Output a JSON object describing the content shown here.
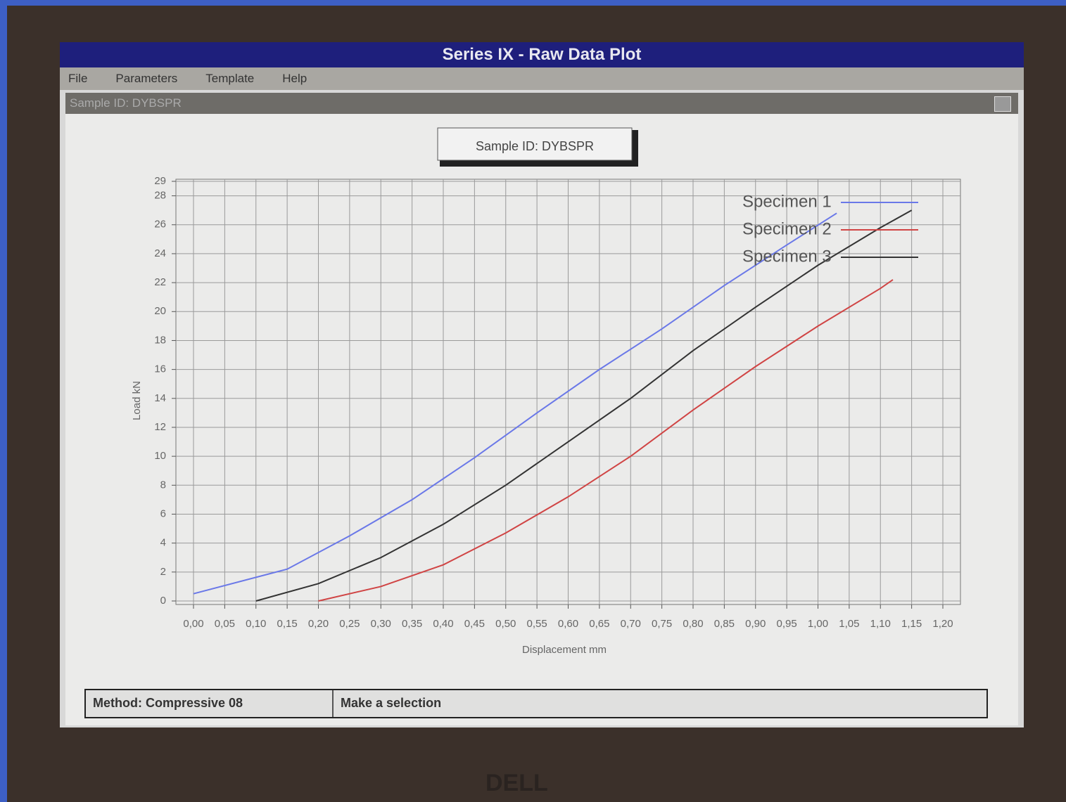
{
  "window": {
    "title": "Series IX - Raw Data Plot",
    "menu": [
      "File",
      "Parameters",
      "Template",
      "Help"
    ],
    "child_title": "Sample ID: DYBSPR"
  },
  "status_bar": [
    "Method: Compressive 08",
    "Make a selection"
  ],
  "monitor_brand": "DELL",
  "chart_data": {
    "type": "line",
    "title": "Sample ID: DYBSPR",
    "x_label": "Displacement mm",
    "y_label": "Load kN",
    "xlim": [
      0,
      1.2
    ],
    "ylim": [
      0,
      29
    ],
    "xticks": [
      {
        "value": 0,
        "label": "0,00"
      },
      {
        "value": 0.05,
        "label": "0,05"
      },
      {
        "value": 0.1,
        "label": "0,10"
      },
      {
        "value": 0.15,
        "label": "0,15"
      },
      {
        "value": 0.2,
        "label": "0,20"
      },
      {
        "value": 0.25,
        "label": "0,25"
      },
      {
        "value": 0.3,
        "label": "0,30"
      },
      {
        "value": 0.35,
        "label": "0,35"
      },
      {
        "value": 0.4,
        "label": "0,40"
      },
      {
        "value": 0.45,
        "label": "0,45"
      },
      {
        "value": 0.5,
        "label": "0,50"
      },
      {
        "value": 0.55,
        "label": "0,55"
      },
      {
        "value": 0.6,
        "label": "0,60"
      },
      {
        "value": 0.65,
        "label": "0,65"
      },
      {
        "value": 0.7,
        "label": "0,70"
      },
      {
        "value": 0.75,
        "label": "0,75"
      },
      {
        "value": 0.8,
        "label": "0,80"
      },
      {
        "value": 0.85,
        "label": "0,85"
      },
      {
        "value": 0.9,
        "label": "0,90"
      },
      {
        "value": 0.95,
        "label": "0,95"
      },
      {
        "value": 1,
        "label": "1,00"
      },
      {
        "value": 1.05,
        "label": "1,05"
      },
      {
        "value": 1.1,
        "label": "1,10"
      },
      {
        "value": 1.15,
        "label": "1,15"
      },
      {
        "value": 1.2,
        "label": "1,20"
      }
    ],
    "yticks": [
      0,
      2,
      4,
      6,
      8,
      10,
      12,
      14,
      16,
      18,
      20,
      22,
      24,
      26,
      28,
      29
    ],
    "grid": true,
    "legend": "top-right",
    "series": [
      {
        "name": "Specimen 1",
        "color": "#6a78e8",
        "x": [
          0,
          0.15,
          0.25,
          0.35,
          0.45,
          0.55,
          0.65,
          0.75,
          0.85,
          0.95,
          1.03
        ],
        "values": [
          0.5,
          2.2,
          4.5,
          7,
          9.9,
          13,
          16,
          18.8,
          21.8,
          24.6,
          26.8
        ]
      },
      {
        "name": "Specimen 2",
        "color": "#d04444",
        "x": [
          0.2,
          0.3,
          0.4,
          0.5,
          0.6,
          0.7,
          0.8,
          0.9,
          1,
          1.1,
          1.12
        ],
        "values": [
          0,
          1,
          2.5,
          4.7,
          7.2,
          10,
          13.2,
          16.2,
          19,
          21.6,
          22.2
        ]
      },
      {
        "name": "Specimen 3",
        "color": "#333333",
        "x": [
          0.1,
          0.2,
          0.3,
          0.4,
          0.5,
          0.6,
          0.7,
          0.8,
          0.9,
          1,
          1.1,
          1.15
        ],
        "values": [
          0,
          1.2,
          3,
          5.3,
          8,
          11,
          14,
          17.3,
          20.3,
          23.2,
          25.8,
          27
        ]
      }
    ]
  }
}
